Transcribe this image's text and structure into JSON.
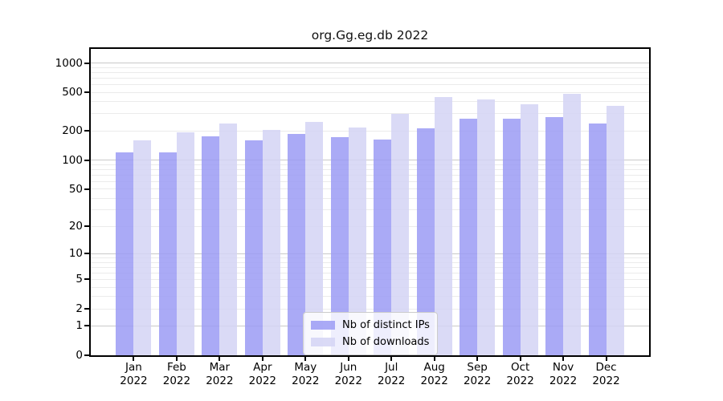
{
  "chart_data": {
    "type": "bar",
    "title": "org.Gg.eg.db 2022",
    "year": "2022",
    "scale": "log10(value+1)",
    "categories": [
      "Jan",
      "Feb",
      "Mar",
      "Apr",
      "May",
      "Jun",
      "Jul",
      "Aug",
      "Sep",
      "Oct",
      "Nov",
      "Dec"
    ],
    "series": [
      {
        "name": "Nb of distinct IPs",
        "color": "#9b9bf5",
        "values": [
          121,
          119,
          175,
          159,
          186,
          174,
          164,
          211,
          268,
          267,
          279,
          238
        ]
      },
      {
        "name": "Nb of downloads",
        "color": "#d3d3f5",
        "values": [
          161,
          192,
          239,
          203,
          247,
          218,
          301,
          450,
          423,
          377,
          486,
          359
        ]
      }
    ],
    "yticks": [
      0,
      1,
      2,
      5,
      10,
      20,
      50,
      100,
      200,
      500,
      1000
    ],
    "major_gridlines": [
      1,
      10,
      100,
      1000
    ],
    "minor_gridlines": [
      2,
      3,
      4,
      5,
      6,
      7,
      8,
      9,
      20,
      30,
      40,
      50,
      60,
      70,
      80,
      90,
      200,
      300,
      400,
      500,
      600,
      700,
      800,
      900
    ],
    "ylim": [
      0,
      1394
    ],
    "xlabel": "",
    "ylabel": "",
    "grid": true,
    "legend_position": "bottom-center",
    "colors": {
      "frame": "#000000",
      "grid_minor": "#ebebeb",
      "grid_major": "#c9c9c9",
      "background": "#ffffff"
    }
  }
}
